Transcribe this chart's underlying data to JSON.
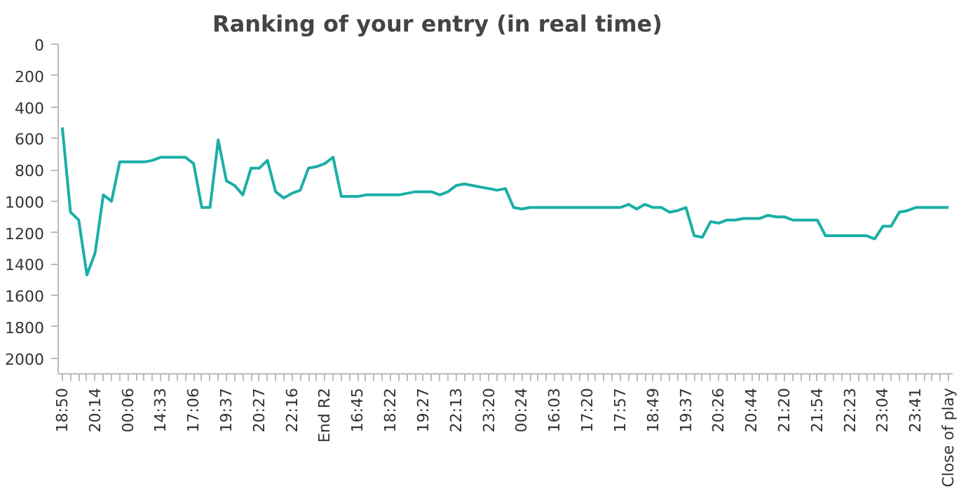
{
  "chart_data": {
    "type": "line",
    "title": "Ranking of your entry (in real time)",
    "categories": [
      "18:50",
      null,
      null,
      null,
      "20:14",
      null,
      null,
      null,
      "00:06",
      null,
      null,
      null,
      "14:33",
      null,
      null,
      null,
      "17:06",
      null,
      null,
      null,
      "19:37",
      null,
      null,
      null,
      "20:27",
      null,
      null,
      null,
      "22:16",
      null,
      null,
      null,
      "End R2",
      null,
      null,
      null,
      "16:45",
      null,
      null,
      null,
      "18:22",
      null,
      null,
      null,
      "19:27",
      null,
      null,
      null,
      "22:13",
      null,
      null,
      null,
      "23:20",
      null,
      null,
      null,
      "00:24",
      null,
      null,
      null,
      "16:03",
      null,
      null,
      null,
      "17:20",
      null,
      null,
      null,
      "17:57",
      null,
      null,
      null,
      "18:49",
      null,
      null,
      null,
      "19:37",
      null,
      null,
      null,
      "20:26",
      null,
      null,
      null,
      "20:44",
      null,
      null,
      null,
      "21:20",
      null,
      null,
      null,
      "21:54",
      null,
      null,
      null,
      "22:23",
      null,
      null,
      null,
      "23:04",
      null,
      null,
      null,
      "23:41",
      null,
      null,
      null,
      "Close of play"
    ],
    "series": [
      {
        "color": "#1aafa6",
        "values": [
          530,
          1070,
          1120,
          1470,
          1330,
          960,
          1000,
          750,
          750,
          750,
          750,
          740,
          720,
          720,
          720,
          720,
          760,
          1040,
          1040,
          610,
          870,
          900,
          960,
          790,
          790,
          740,
          940,
          980,
          950,
          930,
          790,
          780,
          760,
          720,
          970,
          970,
          970,
          960,
          960,
          960,
          960,
          960,
          950,
          940,
          940,
          940,
          960,
          940,
          900,
          890,
          900,
          910,
          920,
          930,
          920,
          1040,
          1050,
          1040,
          1040,
          1040,
          1040,
          1040,
          1040,
          1040,
          1040,
          1040,
          1040,
          1040,
          1040,
          1020,
          1050,
          1020,
          1040,
          1040,
          1070,
          1060,
          1040,
          1220,
          1230,
          1130,
          1140,
          1120,
          1120,
          1110,
          1110,
          1110,
          1090,
          1100,
          1100,
          1120,
          1120,
          1120,
          1120,
          1220,
          1220,
          1220,
          1220,
          1220,
          1220,
          1240,
          1160,
          1160,
          1070,
          1060,
          1040,
          1040,
          1040,
          1040,
          1040
        ]
      }
    ],
    "ylim": [
      2100,
      0
    ],
    "yticks": [
      0,
      200,
      400,
      600,
      800,
      1000,
      1200,
      1400,
      1600,
      1800,
      2000
    ],
    "grid": false,
    "marker": "none",
    "line_style": "solid"
  }
}
